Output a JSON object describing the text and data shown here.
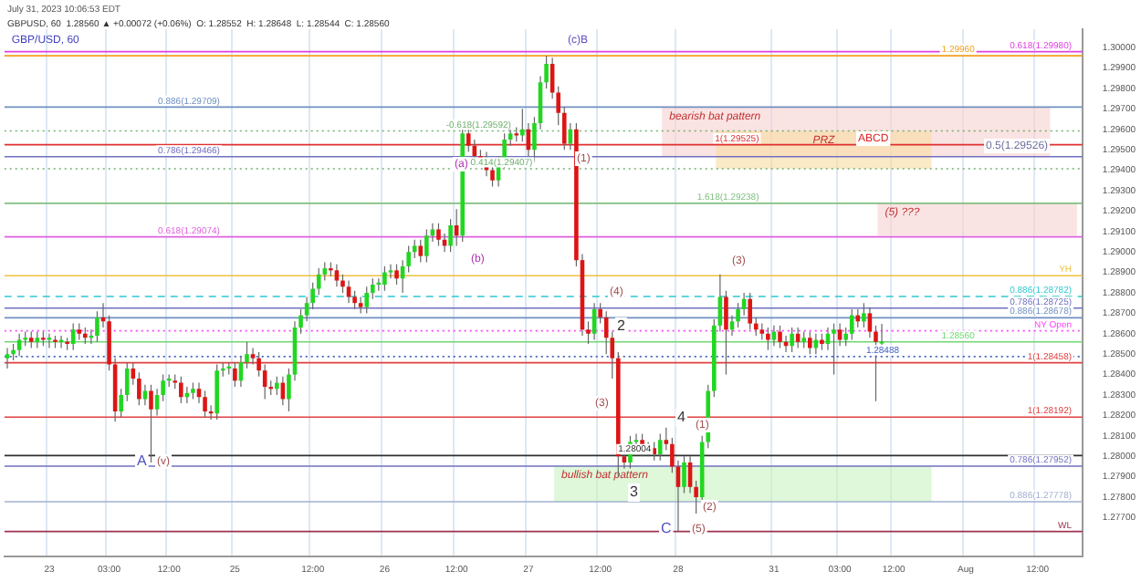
{
  "chart_data": {
    "type": "candlestick",
    "title": "GBP/USD, 60",
    "categories": [
      null,
      null,
      null,
      null,
      null,
      null,
      null,
      "23",
      null,
      null,
      null,
      null,
      null,
      null,
      null,
      null,
      null,
      "03:00",
      null,
      null,
      null,
      null,
      null,
      null,
      null,
      null,
      null,
      "12:00",
      null,
      null,
      null,
      null,
      null,
      null,
      null,
      null,
      null,
      null,
      "25",
      null,
      null,
      null,
      null,
      null,
      null,
      null,
      null,
      null,
      null,
      null,
      null,
      "12:00",
      null,
      null,
      null,
      null,
      null,
      null,
      null,
      null,
      null,
      null,
      null,
      "26",
      null,
      null,
      null,
      null,
      null,
      null,
      null,
      null,
      null,
      null,
      null,
      "12:00",
      null,
      null,
      null,
      null,
      null,
      null,
      null,
      null,
      null,
      null,
      null,
      "27",
      null,
      null,
      null,
      null,
      null,
      null,
      null,
      null,
      null,
      null,
      null,
      "12:00",
      null,
      null,
      null,
      null,
      null,
      null,
      null,
      null,
      null,
      null,
      null,
      null,
      "28",
      null,
      null,
      null,
      null,
      null,
      null,
      null,
      null,
      null,
      null,
      null,
      null,
      null,
      null,
      null,
      "31",
      null,
      null,
      null,
      null,
      null,
      null,
      null,
      null,
      null,
      null,
      "03:00",
      null,
      null,
      null,
      null,
      null,
      null,
      null,
      null,
      "12:00",
      null,
      null,
      null,
      null,
      null,
      null,
      null,
      null,
      null,
      null,
      null,
      "Aug",
      null,
      null,
      null,
      null,
      null,
      null,
      null,
      null,
      null,
      null,
      null,
      "12:00",
      null,
      null,
      null,
      null,
      null,
      null,
      null
    ],
    "ohlc": [
      [
        1.2848,
        1.2853,
        1.2843,
        1.285
      ],
      [
        1.285,
        1.2855,
        1.2847,
        1.2852
      ],
      [
        1.2852,
        1.286,
        1.2849,
        1.2857
      ],
      [
        1.2857,
        1.2861,
        1.2854,
        1.2858
      ],
      [
        1.2858,
        1.2861,
        1.2853,
        1.2856
      ],
      [
        1.2856,
        1.2861,
        1.2853,
        1.2858
      ],
      [
        1.2858,
        1.2861,
        1.2854,
        1.2857
      ],
      [
        1.2857,
        1.286,
        1.2853,
        1.2858
      ],
      [
        1.2857,
        1.2859,
        1.2853,
        1.2856
      ],
      [
        1.2856,
        1.2859,
        1.2853,
        1.2857
      ],
      [
        1.2856,
        1.2858,
        1.2852,
        1.2855
      ],
      [
        1.2855,
        1.2865,
        1.2852,
        1.2862
      ],
      [
        1.2862,
        1.2865,
        1.2857,
        1.286
      ],
      [
        1.286,
        1.2863,
        1.2855,
        1.2858
      ],
      [
        1.2858,
        1.2862,
        1.2855,
        1.2859
      ],
      [
        1.2859,
        1.2871,
        1.2856,
        1.2868
      ],
      [
        1.2868,
        1.2875,
        1.2863,
        1.2866
      ],
      [
        1.2866,
        1.2869,
        1.2842,
        1.2845
      ],
      [
        1.2845,
        1.2848,
        1.2817,
        1.2822
      ],
      [
        1.2822,
        1.2833,
        1.2819,
        1.283
      ],
      [
        1.283,
        1.2846,
        1.2827,
        1.2843
      ],
      [
        1.2843,
        1.2846,
        1.2835,
        1.2838
      ],
      [
        1.2838,
        1.2841,
        1.2825,
        1.2828
      ],
      [
        1.2828,
        1.2835,
        1.2825,
        1.2832
      ],
      [
        1.2832,
        1.2835,
        1.2797,
        1.2823
      ],
      [
        1.2823,
        1.2833,
        1.282,
        1.283
      ],
      [
        1.283,
        1.284,
        1.2827,
        1.2837
      ],
      [
        1.2837,
        1.284,
        1.2834,
        1.2838
      ],
      [
        1.2837,
        1.284,
        1.2833,
        1.2836
      ],
      [
        1.2836,
        1.2839,
        1.2826,
        1.2829
      ],
      [
        1.2829,
        1.2834,
        1.2826,
        1.2831
      ],
      [
        1.2831,
        1.2836,
        1.2828,
        1.2833
      ],
      [
        1.2833,
        1.2836,
        1.2826,
        1.2829
      ],
      [
        1.2829,
        1.2832,
        1.2819,
        1.2822
      ],
      [
        1.2822,
        1.2825,
        1.2818,
        1.2821
      ],
      [
        1.2821,
        1.2845,
        1.2818,
        1.2842
      ],
      [
        1.2842,
        1.2846,
        1.2839,
        1.2843
      ],
      [
        1.2843,
        1.2846,
        1.284,
        1.2844
      ],
      [
        1.2843,
        1.2846,
        1.2834,
        1.2837
      ],
      [
        1.2837,
        1.2849,
        1.2834,
        1.2846
      ],
      [
        1.2846,
        1.2856,
        1.2843,
        1.285
      ],
      [
        1.285,
        1.2853,
        1.2845,
        1.2848
      ],
      [
        1.2848,
        1.2851,
        1.2839,
        1.2842
      ],
      [
        1.2842,
        1.2845,
        1.2828,
        1.2834
      ],
      [
        1.2834,
        1.2837,
        1.283,
        1.2833
      ],
      [
        1.2833,
        1.2839,
        1.283,
        1.2836
      ],
      [
        1.2836,
        1.2839,
        1.2825,
        1.2828
      ],
      [
        1.2828,
        1.2843,
        1.2822,
        1.284
      ],
      [
        1.284,
        1.2866,
        1.2837,
        1.2863
      ],
      [
        1.2863,
        1.2872,
        1.286,
        1.2869
      ],
      [
        1.2869,
        1.2878,
        1.2866,
        1.2875
      ],
      [
        1.2875,
        1.2885,
        1.2872,
        1.2882
      ],
      [
        1.2882,
        1.2892,
        1.2879,
        1.2889
      ],
      [
        1.2889,
        1.2895,
        1.2886,
        1.2892
      ],
      [
        1.2892,
        1.2895,
        1.2888,
        1.2891
      ],
      [
        1.2891,
        1.2894,
        1.2883,
        1.2886
      ],
      [
        1.2886,
        1.2889,
        1.288,
        1.2883
      ],
      [
        1.2883,
        1.2886,
        1.2875,
        1.2878
      ],
      [
        1.2878,
        1.2881,
        1.2872,
        1.2875
      ],
      [
        1.2875,
        1.2878,
        1.287,
        1.2873
      ],
      [
        1.2873,
        1.2883,
        1.287,
        1.288
      ],
      [
        1.288,
        1.2887,
        1.2877,
        1.2884
      ],
      [
        1.2884,
        1.2887,
        1.2881,
        1.2885
      ],
      [
        1.2884,
        1.2893,
        1.2881,
        1.289
      ],
      [
        1.289,
        1.2894,
        1.2887,
        1.2891
      ],
      [
        1.2891,
        1.2894,
        1.2884,
        1.2887
      ],
      [
        1.2887,
        1.2896,
        1.288,
        1.2893
      ],
      [
        1.2893,
        1.2903,
        1.289,
        1.29
      ],
      [
        1.29,
        1.2906,
        1.2897,
        1.2903
      ],
      [
        1.2903,
        1.2906,
        1.2895,
        1.2898
      ],
      [
        1.2898,
        1.2911,
        1.2895,
        1.2908
      ],
      [
        1.2908,
        1.2914,
        1.2905,
        1.2911
      ],
      [
        1.2911,
        1.2914,
        1.2903,
        1.2906
      ],
      [
        1.2906,
        1.2909,
        1.29,
        1.2903
      ],
      [
        1.2903,
        1.2916,
        1.29,
        1.2913
      ],
      [
        1.2913,
        1.2921,
        1.2903,
        1.2908
      ],
      [
        1.2908,
        1.2962,
        1.2905,
        1.2958
      ],
      [
        1.2958,
        1.2961,
        1.2949,
        1.2952
      ],
      [
        1.2952,
        1.2955,
        1.2944,
        1.2947
      ],
      [
        1.2947,
        1.295,
        1.2943,
        1.2946
      ],
      [
        1.2946,
        1.2949,
        1.2937,
        1.294
      ],
      [
        1.294,
        1.2943,
        1.2932,
        1.2935
      ],
      [
        1.2935,
        1.2947,
        1.2932,
        1.2944
      ],
      [
        1.2944,
        1.2958,
        1.2941,
        1.2955
      ],
      [
        1.2955,
        1.2961,
        1.2952,
        1.2958
      ],
      [
        1.2958,
        1.2961,
        1.2954,
        1.2957
      ],
      [
        1.2957,
        1.297,
        1.2954,
        1.296
      ],
      [
        1.296,
        1.2963,
        1.2947,
        1.295
      ],
      [
        1.295,
        1.2966,
        1.2944,
        1.2963
      ],
      [
        1.2963,
        1.2986,
        1.296,
        1.2983
      ],
      [
        1.2983,
        1.2996,
        1.298,
        1.2992
      ],
      [
        1.2992,
        1.2995,
        1.2975,
        1.2978
      ],
      [
        1.2978,
        1.2981,
        1.2962,
        1.2968
      ],
      [
        1.2968,
        1.2971,
        1.295,
        1.2953
      ],
      [
        1.2953,
        1.2963,
        1.295,
        1.296
      ],
      [
        1.296,
        1.2963,
        1.2893,
        1.2896
      ],
      [
        1.2896,
        1.2899,
        1.2859,
        1.2862
      ],
      [
        1.2862,
        1.2866,
        1.2855,
        1.286
      ],
      [
        1.286,
        1.2875,
        1.2857,
        1.2872
      ],
      [
        1.2872,
        1.2875,
        1.2865,
        1.2868
      ],
      [
        1.2868,
        1.2871,
        1.285,
        1.2858
      ],
      [
        1.2858,
        1.2861,
        1.2838,
        1.2848
      ],
      [
        1.2848,
        1.2851,
        1.279,
        1.28
      ],
      [
        1.28,
        1.2803,
        1.2794,
        1.2797
      ],
      [
        1.2797,
        1.281,
        1.2794,
        1.2807
      ],
      [
        1.2807,
        1.2811,
        1.2804,
        1.2808
      ],
      [
        1.2808,
        1.2811,
        1.28,
        1.2803
      ],
      [
        1.2803,
        1.2807,
        1.28,
        1.2804
      ],
      [
        1.2804,
        1.2807,
        1.2798,
        1.2801
      ],
      [
        1.2801,
        1.2811,
        1.2798,
        1.2808
      ],
      [
        1.2808,
        1.2814,
        1.2803,
        1.2806
      ],
      [
        1.2806,
        1.2809,
        1.2792,
        1.2795
      ],
      [
        1.2795,
        1.2798,
        1.2763,
        1.2785
      ],
      [
        1.2785,
        1.28,
        1.2782,
        1.2797
      ],
      [
        1.2797,
        1.28,
        1.2782,
        1.2785
      ],
      [
        1.2785,
        1.2788,
        1.2772,
        1.278
      ],
      [
        1.278,
        1.281,
        1.2777,
        1.2807
      ],
      [
        1.2807,
        1.2835,
        1.2804,
        1.2832
      ],
      [
        1.2832,
        1.2867,
        1.2829,
        1.2864
      ],
      [
        1.2864,
        1.2889,
        1.2861,
        1.2878
      ],
      [
        1.2878,
        1.2881,
        1.284,
        1.2862
      ],
      [
        1.2862,
        1.2869,
        1.2859,
        1.2866
      ],
      [
        1.2866,
        1.2875,
        1.2863,
        1.2872
      ],
      [
        1.2872,
        1.288,
        1.2869,
        1.2877
      ],
      [
        1.2877,
        1.288,
        1.2862,
        1.2865
      ],
      [
        1.2865,
        1.2868,
        1.2859,
        1.2862
      ],
      [
        1.2862,
        1.2865,
        1.2857,
        1.286
      ],
      [
        1.286,
        1.2863,
        1.2852,
        1.2857
      ],
      [
        1.2857,
        1.2864,
        1.2854,
        1.2861
      ],
      [
        1.2861,
        1.2864,
        1.2853,
        1.2856
      ],
      [
        1.2856,
        1.2859,
        1.2851,
        1.2854
      ],
      [
        1.2854,
        1.2863,
        1.2851,
        1.286
      ],
      [
        1.286,
        1.2863,
        1.2853,
        1.2856
      ],
      [
        1.2856,
        1.2861,
        1.2853,
        1.2858
      ],
      [
        1.2858,
        1.2861,
        1.285,
        1.2853
      ],
      [
        1.2853,
        1.286,
        1.285,
        1.2857
      ],
      [
        1.2857,
        1.286,
        1.2852,
        1.2855
      ],
      [
        1.2855,
        1.2863,
        1.2852,
        1.286
      ],
      [
        1.286,
        1.2865,
        1.284,
        1.2862
      ],
      [
        1.2862,
        1.2865,
        1.2854,
        1.2857
      ],
      [
        1.2857,
        1.2863,
        1.2854,
        1.286
      ],
      [
        1.286,
        1.2872,
        1.2857,
        1.2869
      ],
      [
        1.2869,
        1.2872,
        1.2863,
        1.2866
      ],
      [
        1.2866,
        1.2875,
        1.2863,
        1.287
      ],
      [
        1.287,
        1.2873,
        1.2858,
        1.2861
      ],
      [
        1.2861,
        1.2864,
        1.2827,
        1.2856
      ],
      [
        1.28552,
        1.28648,
        1.28544,
        1.2856
      ],
      null,
      null,
      null,
      null,
      null,
      null,
      null,
      null,
      null,
      null,
      null,
      null,
      null,
      null,
      null,
      null,
      null,
      null,
      null,
      null,
      null,
      null,
      null,
      null,
      null,
      null,
      null,
      null,
      null,
      null,
      null,
      null,
      null
    ],
    "ylim": [
      1.2751,
      1.3009
    ],
    "yticks": [
      {
        "value": 1.277,
        "label": "1.27700"
      },
      {
        "value": 1.278,
        "label": "1.27800"
      },
      {
        "value": 1.279,
        "label": "1.27900"
      },
      {
        "value": 1.28,
        "label": "1.28000"
      },
      {
        "value": 1.281,
        "label": "1.28100"
      },
      {
        "value": 1.282,
        "label": "1.28200"
      },
      {
        "value": 1.283,
        "label": "1.28300"
      },
      {
        "value": 1.284,
        "label": "1.28400"
      },
      {
        "value": 1.285,
        "label": "1.28500"
      },
      {
        "value": 1.286,
        "label": "1.28600"
      },
      {
        "value": 1.287,
        "label": "1.28700"
      },
      {
        "value": 1.288,
        "label": "1.28800"
      },
      {
        "value": 1.289,
        "label": "1.28900"
      },
      {
        "value": 1.29,
        "label": "1.29000"
      },
      {
        "value": 1.291,
        "label": "1.29100"
      },
      {
        "value": 1.292,
        "label": "1.29200"
      },
      {
        "value": 1.293,
        "label": "1.29300"
      },
      {
        "value": 1.294,
        "label": "1.29400"
      },
      {
        "value": 1.295,
        "label": "1.29500"
      },
      {
        "value": 1.296,
        "label": "1.29600"
      },
      {
        "value": 1.297,
        "label": "1.29700"
      },
      {
        "value": 1.298,
        "label": "1.29800"
      },
      {
        "value": 1.299,
        "label": "1.29900"
      },
      {
        "value": 1.3,
        "label": "1.30000"
      }
    ],
    "grid": "x",
    "ref_lines": [
      {
        "axis": "y",
        "value": 1.2998,
        "label": "0.618(1.29980)",
        "color": "#e040e0"
      },
      {
        "axis": "y",
        "value": 1.2996,
        "label": "1.29960",
        "color": "#f0a020"
      },
      {
        "axis": "y",
        "value": 1.29709,
        "label": "0.886(1.29709)",
        "color": "#7090c0"
      },
      {
        "axis": "y",
        "value": 1.29592,
        "label": "-0.618(1.29592)",
        "color": "#70b070",
        "line_style": "dotted"
      },
      {
        "axis": "y",
        "value": 1.29525,
        "label": "1(1.29525)",
        "color": "#e03030"
      },
      {
        "axis": "y",
        "value": 1.29466,
        "label": "0.786(1.29466)",
        "color": "#7070c0"
      },
      {
        "axis": "y",
        "value": 1.29407,
        "label": "-0.414(1.29407)",
        "color": "#70b070",
        "line_style": "dotted"
      },
      {
        "axis": "y",
        "value": 1.29238,
        "label": "1.618(1.29238)",
        "color": "#80c080"
      },
      {
        "axis": "y",
        "value": 1.29074,
        "label": "0.618(1.29074)",
        "color": "#e060e0"
      },
      {
        "axis": "y",
        "value": 1.28884,
        "label": "YH",
        "color": "#f0c040"
      },
      {
        "axis": "y",
        "value": 1.28782,
        "label": "0.886(1.28782)",
        "color": "#30c8d0",
        "line_style": "dashed"
      },
      {
        "axis": "y",
        "value": 1.28725,
        "label": "0.786(1.28725)",
        "color": "#7070c0"
      },
      {
        "axis": "y",
        "value": 1.28678,
        "label": "0.886(1.28678)",
        "color": "#7090c0"
      },
      {
        "axis": "y",
        "value": 1.28614,
        "label": "NY Open",
        "color": "#ff40ff",
        "line_style": "dotted"
      },
      {
        "axis": "y",
        "value": 1.2856,
        "label": "1.28560",
        "color": "#70d870"
      },
      {
        "axis": "y",
        "value": 1.28488,
        "label": "1.28488",
        "color": "#4060c0",
        "line_style": "dotted"
      },
      {
        "axis": "y",
        "value": 1.28458,
        "label": "1(1.28458)",
        "color": "#e04040"
      },
      {
        "axis": "y",
        "value": 1.28192,
        "label": "1(1.28192)",
        "color": "#e04040"
      },
      {
        "axis": "y",
        "value": 1.28004,
        "label": "1.28004",
        "color": "#303030"
      },
      {
        "axis": "y",
        "value": 1.27952,
        "label": "0.786(1.27952)",
        "color": "#7070c0"
      },
      {
        "axis": "y",
        "value": 1.27778,
        "label": "0.886(1.27778)",
        "color": "#a0b0d0"
      },
      {
        "axis": "y",
        "value": 1.27632,
        "label": "WL",
        "color": "#a03050"
      }
    ],
    "bands": [
      {
        "axis": "y",
        "from": 1.29466,
        "to": 1.29709,
        "label": "bearish bat pattern",
        "color": "#f6d0d0"
      },
      {
        "axis": "y",
        "from": 1.29407,
        "to": 1.29592,
        "label": "PRZ",
        "color": "#f8dca0"
      },
      {
        "axis": "y",
        "from": 1.2908,
        "to": 1.29238,
        "label": "(5) ???",
        "color": "#f6d0d0"
      },
      {
        "axis": "y",
        "from": 1.27778,
        "to": 1.27952,
        "label": "bullish bat pattern",
        "color": "#c8f4c0"
      }
    ],
    "annotations": [
      "July 31, 2023 10:06:53 EDT",
      "GBPUSD, 60  1.28560 ▲ +0.00072 (+0.06%)  O: 1.28552  H: 1.28648  L: 1.28544  C: 1.28560",
      "A",
      "(v)",
      "(a)",
      "(b)",
      "(c)B",
      "(4)",
      "3",
      "C",
      "(5)",
      "4",
      "(1)",
      "(2)",
      "(3)",
      "ABCD",
      "0.5(1.29526)",
      "(3)",
      "2",
      "(1)"
    ]
  }
}
